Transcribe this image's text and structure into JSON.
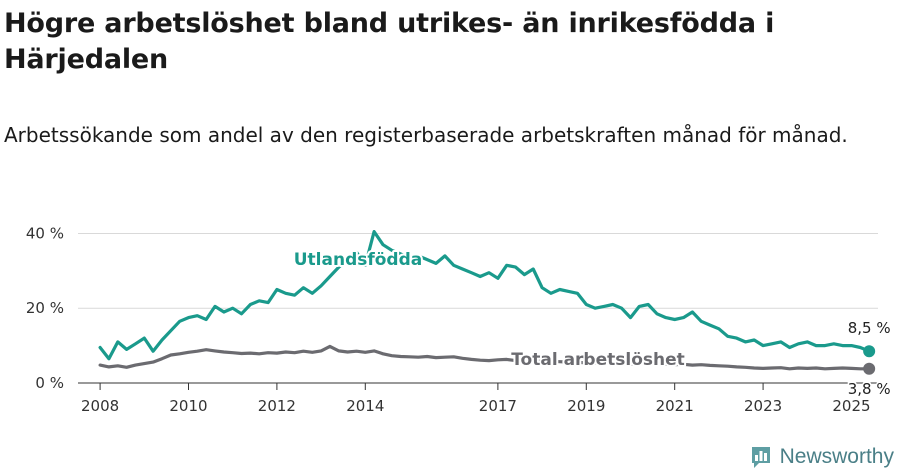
{
  "title": "Högre arbetslöshet bland utrikes- än inrikesfödda i Härjedalen",
  "subtitle": "Arbetssökande som andel av den registerbaserade arbetskraften månad för månad.",
  "brand": {
    "name": "Newsworthy",
    "icon": "bar-chart-speech-icon"
  },
  "chart_data": {
    "type": "line",
    "y_ticks": [
      "0 %",
      "20 %",
      "40 %"
    ],
    "y_tick_values": [
      0,
      20,
      40
    ],
    "ylim": [
      0,
      42
    ],
    "xlim": [
      2007.5,
      2025.6
    ],
    "x_ticks": [
      "2008",
      "2010",
      "2012",
      "2014",
      "2017",
      "2019",
      "2021",
      "2023",
      "2025"
    ],
    "x_tick_values": [
      2008,
      2010,
      2012,
      2014,
      2017,
      2019,
      2021,
      2023,
      2025
    ],
    "grid": true,
    "series": [
      {
        "name": "Utlandsfödda",
        "color": "#1a9a8c",
        "end_label": "8,5 %",
        "x": [
          2008.0,
          2008.2,
          2008.4,
          2008.6,
          2008.8,
          2009.0,
          2009.2,
          2009.4,
          2009.6,
          2009.8,
          2010.0,
          2010.2,
          2010.4,
          2010.6,
          2010.8,
          2011.0,
          2011.2,
          2011.4,
          2011.6,
          2011.8,
          2012.0,
          2012.2,
          2012.4,
          2012.6,
          2012.8,
          2013.0,
          2013.2,
          2013.4,
          2013.6,
          2013.8,
          2014.0,
          2014.2,
          2014.4,
          2014.6,
          2014.8,
          2015.0,
          2015.2,
          2015.4,
          2015.6,
          2015.8,
          2016.0,
          2016.2,
          2016.4,
          2016.6,
          2016.8,
          2017.0,
          2017.2,
          2017.4,
          2017.6,
          2017.8,
          2018.0,
          2018.2,
          2018.4,
          2018.6,
          2018.8,
          2019.0,
          2019.2,
          2019.4,
          2019.6,
          2019.8,
          2020.0,
          2020.2,
          2020.4,
          2020.6,
          2020.8,
          2021.0,
          2021.2,
          2021.4,
          2021.6,
          2021.8,
          2022.0,
          2022.2,
          2022.4,
          2022.6,
          2022.8,
          2023.0,
          2023.2,
          2023.4,
          2023.6,
          2023.8,
          2024.0,
          2024.2,
          2024.4,
          2024.6,
          2024.8,
          2025.0,
          2025.2,
          2025.4
        ],
        "values": [
          9.5,
          6.5,
          11.0,
          9.0,
          10.5,
          12.0,
          8.5,
          11.5,
          14.0,
          16.5,
          17.5,
          18.0,
          17.0,
          20.5,
          19.0,
          20.0,
          18.5,
          21.0,
          22.0,
          21.5,
          25.0,
          24.0,
          23.5,
          25.5,
          24.0,
          26.0,
          28.5,
          31.0,
          33.0,
          35.0,
          31.5,
          40.5,
          37.0,
          35.5,
          34.5,
          33.5,
          34.0,
          33.0,
          32.0,
          34.0,
          31.5,
          30.5,
          29.5,
          28.5,
          29.5,
          28.0,
          31.5,
          31.0,
          29.0,
          30.5,
          25.5,
          24.0,
          25.0,
          24.5,
          24.0,
          21.0,
          20.0,
          20.5,
          21.0,
          20.0,
          17.5,
          20.5,
          21.0,
          18.5,
          17.5,
          17.0,
          17.5,
          19.0,
          16.5,
          15.5,
          14.5,
          12.5,
          12.0,
          11.0,
          11.5,
          10.0,
          10.5,
          11.0,
          9.5,
          10.5,
          11.0,
          10.0,
          10.0,
          10.5,
          10.0,
          10.0,
          9.5,
          8.5
        ]
      },
      {
        "name": "Total arbetslöshet",
        "color": "#6b6b70",
        "end_label": "3,8 %",
        "x": [
          2008.0,
          2008.2,
          2008.4,
          2008.6,
          2008.8,
          2009.0,
          2009.2,
          2009.4,
          2009.6,
          2009.8,
          2010.0,
          2010.2,
          2010.4,
          2010.6,
          2010.8,
          2011.0,
          2011.2,
          2011.4,
          2011.6,
          2011.8,
          2012.0,
          2012.2,
          2012.4,
          2012.6,
          2012.8,
          2013.0,
          2013.2,
          2013.4,
          2013.6,
          2013.8,
          2014.0,
          2014.2,
          2014.4,
          2014.6,
          2014.8,
          2015.0,
          2015.2,
          2015.4,
          2015.6,
          2015.8,
          2016.0,
          2016.2,
          2016.4,
          2016.6,
          2016.8,
          2017.0,
          2017.2,
          2017.4,
          2017.6,
          2017.8,
          2018.0,
          2018.2,
          2018.4,
          2018.6,
          2018.8,
          2019.0,
          2019.2,
          2019.4,
          2019.6,
          2019.8,
          2020.0,
          2020.2,
          2020.4,
          2020.6,
          2020.8,
          2021.0,
          2021.2,
          2021.4,
          2021.6,
          2021.8,
          2022.0,
          2022.2,
          2022.4,
          2022.6,
          2022.8,
          2023.0,
          2023.2,
          2023.4,
          2023.6,
          2023.8,
          2024.0,
          2024.2,
          2024.4,
          2024.6,
          2024.8,
          2025.0,
          2025.2,
          2025.4
        ],
        "values": [
          4.8,
          4.3,
          4.6,
          4.2,
          4.8,
          5.2,
          5.6,
          6.5,
          7.5,
          7.8,
          8.2,
          8.5,
          8.9,
          8.6,
          8.3,
          8.1,
          7.9,
          8.0,
          7.8,
          8.1,
          8.0,
          8.3,
          8.1,
          8.5,
          8.2,
          8.6,
          9.8,
          8.6,
          8.3,
          8.5,
          8.2,
          8.6,
          7.8,
          7.3,
          7.1,
          7.0,
          6.9,
          7.1,
          6.8,
          6.9,
          7.0,
          6.6,
          6.3,
          6.1,
          6.0,
          6.2,
          6.3,
          6.0,
          5.9,
          6.0,
          5.9,
          5.8,
          5.7,
          5.6,
          5.5,
          5.4,
          5.3,
          5.4,
          5.2,
          5.1,
          5.0,
          5.2,
          5.1,
          5.3,
          5.0,
          4.9,
          5.0,
          4.8,
          4.9,
          4.7,
          4.6,
          4.5,
          4.3,
          4.2,
          4.0,
          3.9,
          4.0,
          4.1,
          3.8,
          4.0,
          3.9,
          4.0,
          3.8,
          3.9,
          4.0,
          3.9,
          3.8,
          3.8
        ]
      }
    ]
  }
}
